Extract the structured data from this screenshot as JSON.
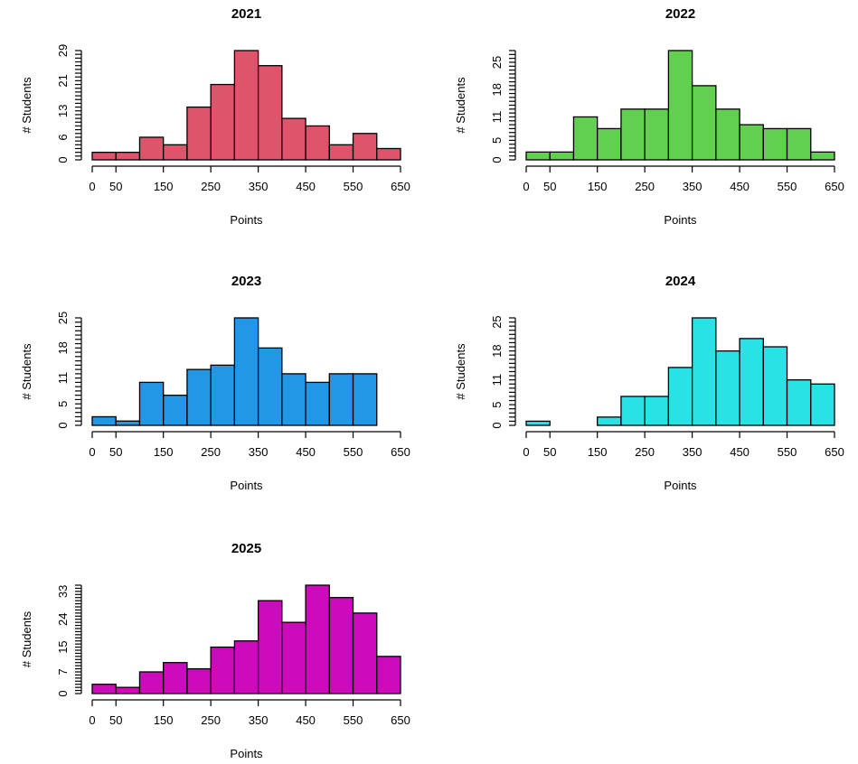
{
  "chart_data": [
    {
      "type": "bar",
      "title": "2021",
      "xlabel": "Points",
      "ylabel": "# Students",
      "color": "#DF536B",
      "bin_edges": [
        0,
        50,
        100,
        150,
        200,
        250,
        300,
        350,
        400,
        450,
        500,
        550,
        600,
        650
      ],
      "values": [
        2,
        2,
        6,
        4,
        14,
        20,
        29,
        25,
        11,
        9,
        4,
        7,
        3
      ],
      "xticks": [
        0,
        50,
        150,
        250,
        350,
        450,
        550,
        650
      ],
      "yticks": [
        0,
        6,
        13,
        21,
        29
      ],
      "ylim": [
        0,
        29
      ],
      "grid": false
    },
    {
      "type": "bar",
      "title": "2022",
      "xlabel": "Points",
      "ylabel": "# Students",
      "color": "#61D04F",
      "bin_edges": [
        0,
        50,
        100,
        150,
        200,
        250,
        300,
        350,
        400,
        450,
        500,
        550,
        600,
        650
      ],
      "values": [
        2,
        2,
        11,
        8,
        13,
        13,
        28,
        19,
        13,
        9,
        8,
        8,
        2
      ],
      "xticks": [
        0,
        50,
        150,
        250,
        350,
        450,
        550,
        650
      ],
      "yticks": [
        0,
        5,
        11,
        18,
        25
      ],
      "ylim": [
        0,
        28
      ],
      "grid": false
    },
    {
      "type": "bar",
      "title": "2023",
      "xlabel": "Points",
      "ylabel": "# Students",
      "color": "#2297E6",
      "bin_edges": [
        0,
        50,
        100,
        150,
        200,
        250,
        300,
        350,
        400,
        450,
        500,
        550,
        600,
        650
      ],
      "values": [
        2,
        1,
        10,
        7,
        13,
        14,
        25,
        18,
        12,
        10,
        12,
        12,
        0
      ],
      "xticks": [
        0,
        50,
        150,
        250,
        350,
        450,
        550,
        650
      ],
      "yticks": [
        0,
        5,
        11,
        18,
        25
      ],
      "ylim": [
        0,
        25
      ],
      "grid": false
    },
    {
      "type": "bar",
      "title": "2024",
      "xlabel": "Points",
      "ylabel": "# Students",
      "color": "#28E2E5",
      "bin_edges": [
        0,
        50,
        100,
        150,
        200,
        250,
        300,
        350,
        400,
        450,
        500,
        550,
        600,
        650
      ],
      "values": [
        1,
        0,
        0,
        2,
        7,
        7,
        14,
        26,
        18,
        21,
        19,
        11,
        10
      ],
      "xticks": [
        0,
        50,
        150,
        250,
        350,
        450,
        550,
        650
      ],
      "yticks": [
        0,
        5,
        11,
        18,
        25
      ],
      "ylim": [
        0,
        26
      ],
      "grid": false
    },
    {
      "type": "bar",
      "title": "2025",
      "xlabel": "Points",
      "ylabel": "# Students",
      "color": "#CD0BBC",
      "bin_edges": [
        0,
        50,
        100,
        150,
        200,
        250,
        300,
        350,
        400,
        450,
        500,
        550,
        600,
        650
      ],
      "values": [
        3,
        2,
        7,
        10,
        8,
        15,
        17,
        30,
        23,
        35,
        31,
        26,
        12
      ],
      "xticks": [
        0,
        50,
        150,
        250,
        350,
        450,
        550,
        650
      ],
      "yticks": [
        0,
        7,
        15,
        24,
        33
      ],
      "ylim": [
        0,
        35
      ],
      "grid": false
    }
  ]
}
